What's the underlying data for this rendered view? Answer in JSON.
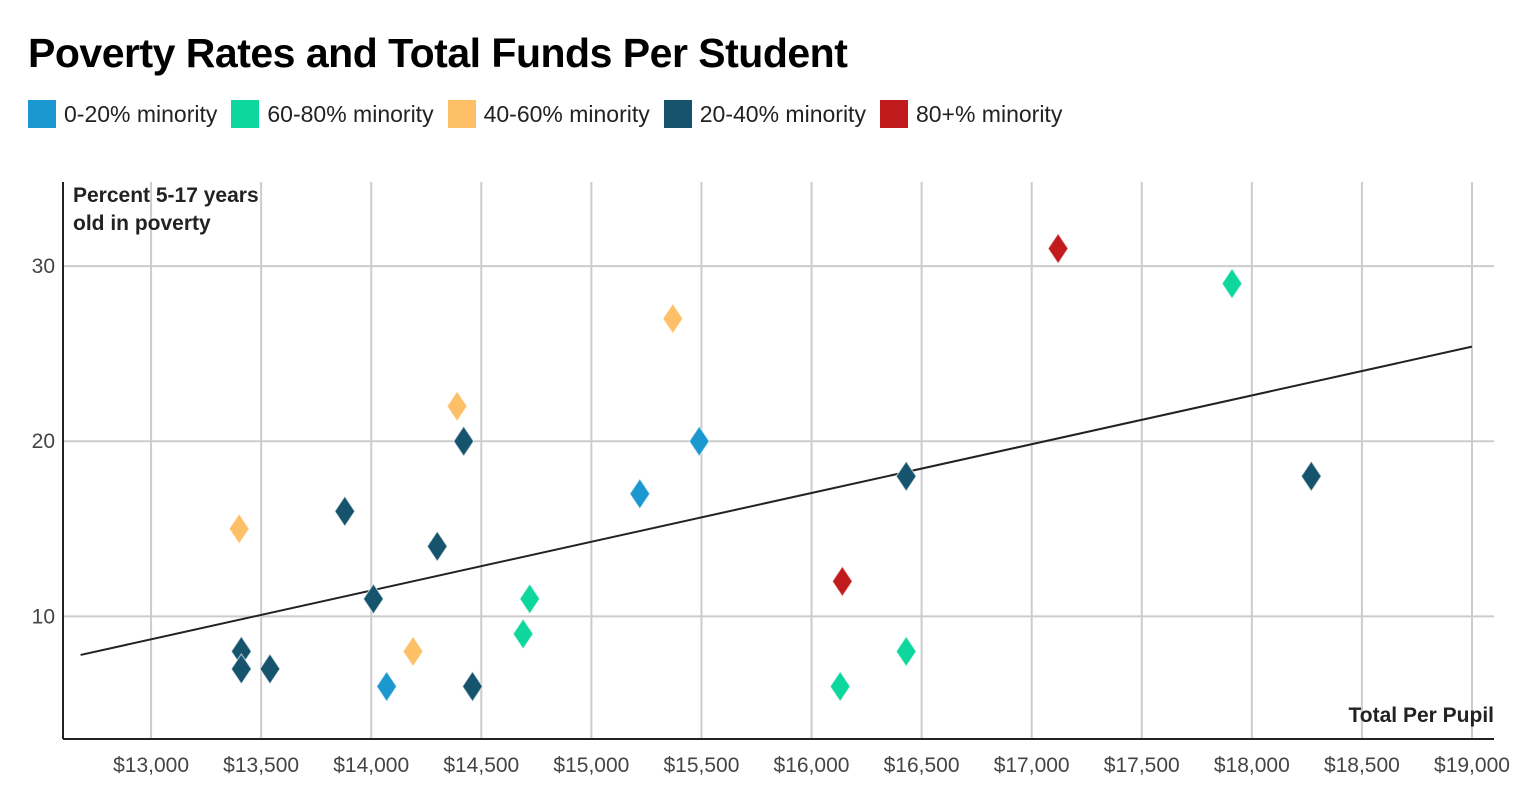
{
  "chart_data": {
    "type": "scatter",
    "title": "Poverty Rates and Total Funds Per Student",
    "xlabel": "Total Per Pupil",
    "ylabel_lines": [
      "Percent 5-17 years",
      "old in poverty"
    ],
    "xlim": [
      12600,
      19100
    ],
    "ylim": [
      3,
      34.8
    ],
    "x_ticks": [
      13000,
      13500,
      14000,
      14500,
      15000,
      15500,
      16000,
      16500,
      17000,
      17500,
      18000,
      18500,
      19000
    ],
    "x_tick_labels": [
      "$13,000",
      "$13,500",
      "$14,000",
      "$14,500",
      "$15,000",
      "$15,500",
      "$16,000",
      "$16,500",
      "$17,000",
      "$17,500",
      "$18,000",
      "$18,500",
      "$19,000"
    ],
    "y_ticks": [
      10,
      20,
      30
    ],
    "y_tick_labels": [
      "10",
      "20",
      "30"
    ],
    "grid": true,
    "legend_position": "top-left",
    "series": [
      {
        "name": "0-20% minority",
        "color": "#1a98cf",
        "points": [
          {
            "x": 14070,
            "y": 6
          },
          {
            "x": 15220,
            "y": 17
          },
          {
            "x": 15490,
            "y": 20
          }
        ]
      },
      {
        "name": "60-80% minority",
        "color": "#0dd79c",
        "points": [
          {
            "x": 14690,
            "y": 9
          },
          {
            "x": 14720,
            "y": 11
          },
          {
            "x": 16130,
            "y": 6
          },
          {
            "x": 16430,
            "y": 8
          },
          {
            "x": 17910,
            "y": 29
          }
        ]
      },
      {
        "name": "40-60% minority",
        "color": "#fdc067",
        "points": [
          {
            "x": 13400,
            "y": 15
          },
          {
            "x": 14190,
            "y": 8
          },
          {
            "x": 14390,
            "y": 22
          },
          {
            "x": 15370,
            "y": 27
          }
        ]
      },
      {
        "name": "20-40% minority",
        "color": "#16546e",
        "points": [
          {
            "x": 13410,
            "y": 8
          },
          {
            "x": 13410,
            "y": 7
          },
          {
            "x": 13540,
            "y": 7
          },
          {
            "x": 13880,
            "y": 16
          },
          {
            "x": 14010,
            "y": 11
          },
          {
            "x": 14300,
            "y": 14
          },
          {
            "x": 14420,
            "y": 20
          },
          {
            "x": 14460,
            "y": 6
          },
          {
            "x": 16430,
            "y": 18
          },
          {
            "x": 18270,
            "y": 18
          }
        ]
      },
      {
        "name": "80+% minority",
        "color": "#c21b1d",
        "points": [
          {
            "x": 16140,
            "y": 12
          },
          {
            "x": 17120,
            "y": 31
          }
        ]
      }
    ],
    "trendline": {
      "x1": 12680,
      "y1": 7.8,
      "x2": 19000,
      "y2": 25.4,
      "color": "#222222"
    }
  }
}
